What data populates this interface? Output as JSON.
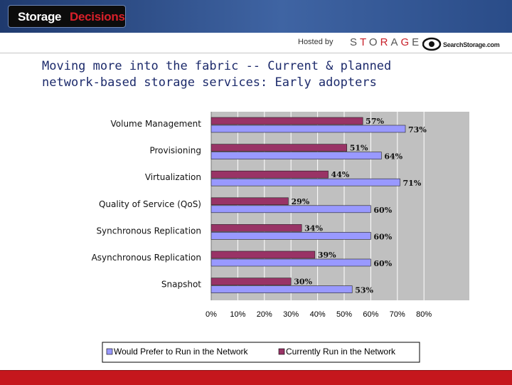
{
  "header": {
    "brand_first": "Storage",
    "brand_second": "Decisions"
  },
  "hosted": {
    "label": "Hosted by",
    "sponsor_1_parts": [
      "S",
      "T",
      "O",
      "R",
      "A",
      "G",
      "E"
    ],
    "sponsor_2": "SearchStorage.com"
  },
  "slide": {
    "title_line1": "Moving more into the fabric -- Current & planned",
    "title_line2": "network-based storage services: Early adopters"
  },
  "colors": {
    "header_blue": "#2e5192",
    "current": "#993366",
    "prefer": "#9999ff",
    "plot_bg": "#c0c0c0",
    "footer_red": "#c5171d",
    "title_text": "#1c2a6b"
  },
  "chart_data": {
    "type": "bar",
    "orientation": "horizontal",
    "title": "Moving more into the fabric -- Current & planned network-based storage services: Early adopters",
    "categories": [
      "Volume Management",
      "Provisioning",
      "Virtualization",
      "Quality of Service (QoS)",
      "Synchronous Replication",
      "Asynchronous Replication",
      "Snapshot"
    ],
    "series": [
      {
        "name": "Currently Run in the Network",
        "values": [
          57,
          51,
          44,
          29,
          34,
          39,
          30
        ]
      },
      {
        "name": "Would Prefer to Run in the Network",
        "values": [
          73,
          64,
          71,
          60,
          60,
          60,
          53
        ]
      }
    ],
    "legend_order": [
      "Would Prefer to Run in the Network",
      "Currently Run in the Network"
    ],
    "xticks": [
      "0%",
      "10%",
      "20%",
      "30%",
      "40%",
      "50%",
      "60%",
      "70%",
      "80%"
    ],
    "xlim": [
      0,
      100
    ],
    "value_suffix": "%",
    "grid": true,
    "legend_position": "bottom"
  }
}
